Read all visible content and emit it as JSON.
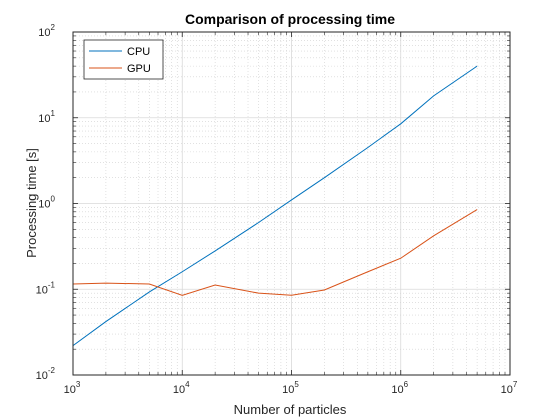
{
  "chart_data": {
    "type": "line",
    "title": "Comparison of processing time",
    "xlabel": "Number of particles",
    "ylabel": "Processing time [s]",
    "xscale": "log",
    "yscale": "log",
    "xlim": [
      1000,
      10000000
    ],
    "ylim": [
      0.01,
      100
    ],
    "x_ticks": [
      {
        "base": "10",
        "exp": "3",
        "value": 1000
      },
      {
        "base": "10",
        "exp": "4",
        "value": 10000
      },
      {
        "base": "10",
        "exp": "5",
        "value": 100000
      },
      {
        "base": "10",
        "exp": "6",
        "value": 1000000
      },
      {
        "base": "10",
        "exp": "7",
        "value": 10000000
      }
    ],
    "y_ticks": [
      {
        "base": "10",
        "exp": "-2",
        "value": 0.01
      },
      {
        "base": "10",
        "exp": "-1",
        "value": 0.1
      },
      {
        "base": "10",
        "exp": "0",
        "value": 1
      },
      {
        "base": "10",
        "exp": "1",
        "value": 10
      },
      {
        "base": "10",
        "exp": "2",
        "value": 100
      }
    ],
    "grid": true,
    "minor_grid": true,
    "legend_position": "top-left",
    "series": [
      {
        "name": "CPU",
        "color": "#0072BD",
        "x": [
          1000,
          2000,
          5000,
          10000,
          20000,
          50000,
          100000,
          200000,
          500000,
          1000000,
          2000000,
          5000000
        ],
        "y": [
          0.022,
          0.042,
          0.093,
          0.16,
          0.28,
          0.6,
          1.1,
          2.0,
          4.5,
          8.5,
          18,
          40
        ]
      },
      {
        "name": "GPU",
        "color": "#D95319",
        "x": [
          1000,
          2000,
          5000,
          10000,
          20000,
          50000,
          100000,
          200000,
          500000,
          1000000,
          2000000,
          5000000
        ],
        "y": [
          0.115,
          0.118,
          0.115,
          0.085,
          0.112,
          0.09,
          0.085,
          0.098,
          0.16,
          0.23,
          0.42,
          0.85
        ]
      }
    ]
  }
}
